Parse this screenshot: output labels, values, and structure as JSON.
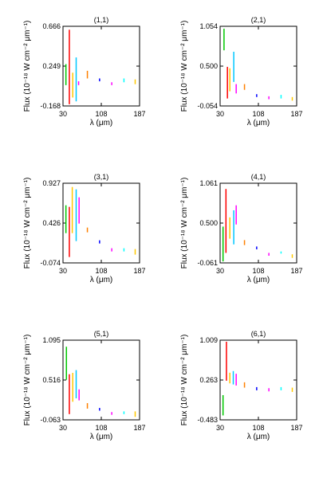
{
  "chart_data": [
    {
      "type": "scatter",
      "title": "(1,1)",
      "xlabel": "λ (μm)",
      "ylabel": "Flux (10⁻¹⁸ W cm⁻² μm⁻¹)",
      "xlim": [
        30,
        187
      ],
      "xticks": [
        "30",
        "108",
        "187"
      ],
      "ylim": [
        -0.168,
        0.666
      ],
      "yticks": [
        "-0.168",
        "0.249",
        "0.666"
      ],
      "series": [
        {
          "color": "#00c800",
          "segments": [
            [
              36,
              0.05,
              0.27
            ]
          ]
        },
        {
          "color": "#ff0000",
          "segments": [
            [
              43,
              -0.15,
              0.63
            ]
          ]
        },
        {
          "color": "#ffc800",
          "segments": [
            [
              50,
              -0.08,
              0.18
            ]
          ]
        },
        {
          "color": "#00c8ff",
          "segments": [
            [
              57,
              -0.12,
              0.34
            ]
          ]
        },
        {
          "color": "#ff00ff",
          "segments": [
            [
              62,
              0.05,
              0.09
            ]
          ]
        },
        {
          "color": "#ff8000",
          "segments": [
            [
              80,
              0.12,
              0.2
            ]
          ]
        },
        {
          "color": "#0000ff",
          "segments": [
            [
              105,
              0.09,
              0.12
            ]
          ]
        },
        {
          "color": "#ff00ff",
          "segments": [
            [
              130,
              0.05,
              0.08
            ]
          ]
        },
        {
          "color": "#00ffff",
          "segments": [
            [
              155,
              0.08,
              0.12
            ]
          ]
        },
        {
          "color": "#ffc800",
          "segments": [
            [
              178,
              0.06,
              0.11
            ]
          ]
        }
      ]
    },
    {
      "type": "scatter",
      "title": "(2,1)",
      "xlabel": "λ (μm)",
      "ylabel": "Flux (10⁻¹⁸ W cm⁻² μm⁻¹)",
      "xlim": [
        30,
        187
      ],
      "xticks": [
        "30",
        "108",
        "187"
      ],
      "ylim": [
        -0.054,
        1.054
      ],
      "yticks": [
        "-0.054",
        "0.500",
        "1.054"
      ],
      "series": [
        {
          "color": "#00c800",
          "segments": [
            [
              38,
              0.72,
              1.02
            ]
          ]
        },
        {
          "color": "#ff0000",
          "segments": [
            [
              45,
              0.05,
              0.49
            ]
          ]
        },
        {
          "color": "#ffc800",
          "segments": [
            [
              50,
              0.15,
              0.47
            ]
          ]
        },
        {
          "color": "#00c8ff",
          "segments": [
            [
              58,
              0.28,
              0.7
            ]
          ]
        },
        {
          "color": "#ff00ff",
          "segments": [
            [
              63,
              0.12,
              0.25
            ]
          ]
        },
        {
          "color": "#ff8000",
          "segments": [
            [
              80,
              0.17,
              0.25
            ]
          ]
        },
        {
          "color": "#0000ff",
          "segments": [
            [
              105,
              0.07,
              0.11
            ]
          ]
        },
        {
          "color": "#ff00ff",
          "segments": [
            [
              130,
              0.04,
              0.08
            ]
          ]
        },
        {
          "color": "#00ffff",
          "segments": [
            [
              155,
              0.05,
              0.1
            ]
          ]
        },
        {
          "color": "#ffc800",
          "segments": [
            [
              178,
              0.02,
              0.07
            ]
          ]
        }
      ]
    },
    {
      "type": "scatter",
      "title": "(3,1)",
      "xlabel": "λ (μm)",
      "ylabel": "Flux (10⁻¹⁸ W cm⁻² μm⁻¹)",
      "xlim": [
        30,
        187
      ],
      "xticks": [
        "30",
        "108",
        "187"
      ],
      "ylim": [
        -0.074,
        0.927
      ],
      "yticks": [
        "-0.074",
        "0.426",
        "0.927"
      ],
      "series": [
        {
          "color": "#00c800",
          "segments": [
            [
              36,
              0.3,
              0.65
            ]
          ]
        },
        {
          "color": "#ff0000",
          "segments": [
            [
              43,
              0.0,
              0.63
            ]
          ]
        },
        {
          "color": "#ffc800",
          "segments": [
            [
              49,
              0.3,
              0.88
            ]
          ]
        },
        {
          "color": "#00c8ff",
          "segments": [
            [
              57,
              0.2,
              0.85
            ]
          ]
        },
        {
          "color": "#ff00ff",
          "segments": [
            [
              63,
              0.42,
              0.75
            ]
          ]
        },
        {
          "color": "#ff8000",
          "segments": [
            [
              80,
              0.31,
              0.37
            ]
          ]
        },
        {
          "color": "#0000ff",
          "segments": [
            [
              105,
              0.17,
              0.21
            ]
          ]
        },
        {
          "color": "#ff00ff",
          "segments": [
            [
              130,
              0.07,
              0.11
            ]
          ]
        },
        {
          "color": "#00ffff",
          "segments": [
            [
              155,
              0.07,
              0.11
            ]
          ]
        },
        {
          "color": "#ffc800",
          "segments": [
            [
              178,
              0.03,
              0.1
            ]
          ]
        }
      ]
    },
    {
      "type": "scatter",
      "title": "(4,1)",
      "xlabel": "λ (μm)",
      "ylabel": "Flux (10⁻¹⁸ W cm⁻² μm⁻¹)",
      "xlim": [
        30,
        187
      ],
      "xticks": [
        "30",
        "108",
        "187"
      ],
      "ylim": [
        -0.061,
        1.061
      ],
      "yticks": [
        "-0.061",
        "0.500",
        "1.061"
      ],
      "series": [
        {
          "color": "#00c800",
          "segments": [
            [
              36,
              -0.04,
              0.45
            ]
          ]
        },
        {
          "color": "#ff0000",
          "segments": [
            [
              42,
              0.08,
              0.98
            ]
          ]
        },
        {
          "color": "#ffc800",
          "segments": [
            [
              50,
              0.28,
              0.58
            ]
          ]
        },
        {
          "color": "#00c8ff",
          "segments": [
            [
              58,
              0.2,
              0.68
            ]
          ]
        },
        {
          "color": "#ff00ff",
          "segments": [
            [
              63,
              0.48,
              0.75
            ]
          ]
        },
        {
          "color": "#ff8000",
          "segments": [
            [
              80,
              0.19,
              0.26
            ]
          ]
        },
        {
          "color": "#0000ff",
          "segments": [
            [
              105,
              0.13,
              0.17
            ]
          ]
        },
        {
          "color": "#ff00ff",
          "segments": [
            [
              130,
              0.04,
              0.08
            ]
          ]
        },
        {
          "color": "#00ffff",
          "segments": [
            [
              155,
              0.07,
              0.1
            ]
          ]
        },
        {
          "color": "#ffc800",
          "segments": [
            [
              178,
              0.01,
              0.06
            ]
          ]
        }
      ]
    },
    {
      "type": "scatter",
      "title": "(5,1)",
      "xlabel": "λ (μm)",
      "ylabel": "Flux (10⁻¹⁸ W cm⁻² μm⁻¹)",
      "xlim": [
        30,
        187
      ],
      "xticks": [
        "30",
        "108",
        "187"
      ],
      "ylim": [
        -0.063,
        1.095
      ],
      "yticks": [
        "-0.063",
        "0.516",
        "1.095"
      ],
      "series": [
        {
          "color": "#00c800",
          "segments": [
            [
              37,
              0.52,
              1.0
            ]
          ]
        },
        {
          "color": "#ff0000",
          "segments": [
            [
              43,
              0.02,
              0.6
            ]
          ]
        },
        {
          "color": "#ffc800",
          "segments": [
            [
              50,
              0.2,
              0.62
            ]
          ]
        },
        {
          "color": "#00c8ff",
          "segments": [
            [
              57,
              0.25,
              0.66
            ]
          ]
        },
        {
          "color": "#ff00ff",
          "segments": [
            [
              63,
              0.22,
              0.38
            ]
          ]
        },
        {
          "color": "#ff8000",
          "segments": [
            [
              80,
              0.1,
              0.18
            ]
          ]
        },
        {
          "color": "#0000ff",
          "segments": [
            [
              105,
              0.07,
              0.11
            ]
          ]
        },
        {
          "color": "#ff00ff",
          "segments": [
            [
              130,
              0.01,
              0.05
            ]
          ]
        },
        {
          "color": "#00ffff",
          "segments": [
            [
              155,
              0.02,
              0.06
            ]
          ]
        },
        {
          "color": "#ffc800",
          "segments": [
            [
              178,
              -0.02,
              0.06
            ]
          ]
        }
      ]
    },
    {
      "type": "scatter",
      "title": "(6,1)",
      "xlabel": "λ (μm)",
      "ylabel": "Flux (10⁻¹⁸ W cm⁻² μm⁻¹)",
      "xlim": [
        30,
        187
      ],
      "xticks": [
        "30",
        "108",
        "187"
      ],
      "ylim": [
        -0.483,
        1.009
      ],
      "yticks": [
        "-0.483",
        "0.263",
        "1.009"
      ],
      "series": [
        {
          "color": "#00c800",
          "segments": [
            [
              36,
              -0.4,
              -0.02
            ]
          ]
        },
        {
          "color": "#ff0000",
          "segments": [
            [
              43,
              0.25,
              0.98
            ]
          ]
        },
        {
          "color": "#ffc800",
          "segments": [
            [
              50,
              0.2,
              0.4
            ]
          ]
        },
        {
          "color": "#00c8ff",
          "segments": [
            [
              57,
              0.18,
              0.43
            ]
          ]
        },
        {
          "color": "#ff00ff",
          "segments": [
            [
              63,
              0.16,
              0.38
            ]
          ]
        },
        {
          "color": "#ff8000",
          "segments": [
            [
              80,
              0.12,
              0.22
            ]
          ]
        },
        {
          "color": "#0000ff",
          "segments": [
            [
              105,
              0.07,
              0.13
            ]
          ]
        },
        {
          "color": "#ff00ff",
          "segments": [
            [
              130,
              0.05,
              0.11
            ]
          ]
        },
        {
          "color": "#00ffff",
          "segments": [
            [
              155,
              0.07,
              0.13
            ]
          ]
        },
        {
          "color": "#ffc800",
          "segments": [
            [
              178,
              0.04,
              0.12
            ]
          ]
        }
      ]
    }
  ]
}
